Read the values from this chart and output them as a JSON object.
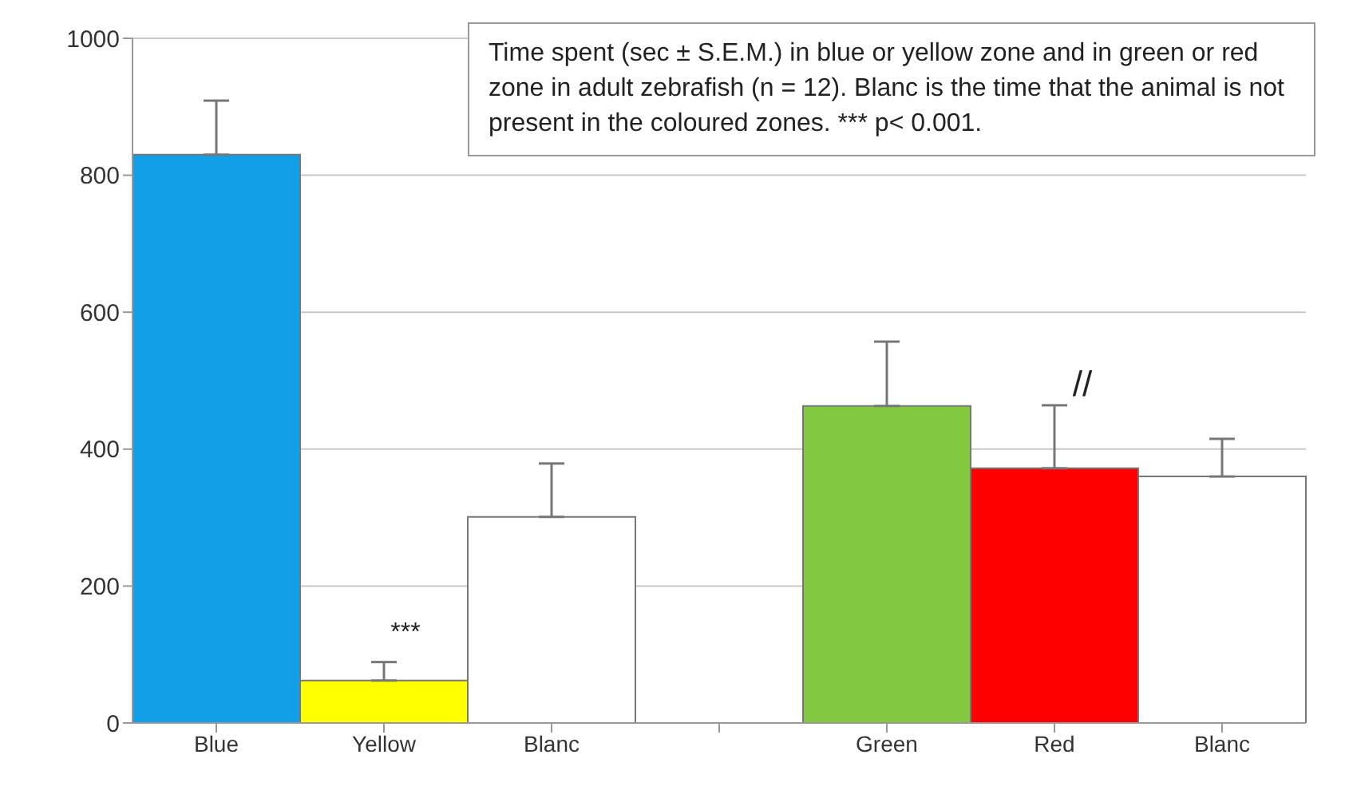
{
  "chart_data": {
    "type": "bar",
    "categories": [
      "Blue",
      "Yellow",
      "Blanc",
      null,
      "Green",
      "Red",
      "Blanc"
    ],
    "values": [
      830,
      62,
      301,
      null,
      463,
      372,
      360
    ],
    "colors": [
      "#139fe8",
      "#ffff00",
      "#ffffff",
      null,
      "#82c941",
      "#ff0000",
      "#ffffff"
    ],
    "errors": [
      [
        830,
        909
      ],
      [
        62,
        89
      ],
      [
        301,
        379
      ],
      null,
      [
        463,
        557
      ],
      [
        372,
        464
      ],
      [
        360,
        415
      ]
    ],
    "ylim": [
      0,
      1000
    ],
    "yticks": [
      0,
      200,
      400,
      600,
      800,
      1000
    ],
    "grid": "y",
    "annotations": [
      "Time spent (sec ± S.E.M.) in blue or yellow zone and in green or red zone in adult zebrafish (n = 12). Blanc is the time that the animal is not present in the coloured zones. *** p< 0.001.",
      "***",
      "//"
    ]
  }
}
